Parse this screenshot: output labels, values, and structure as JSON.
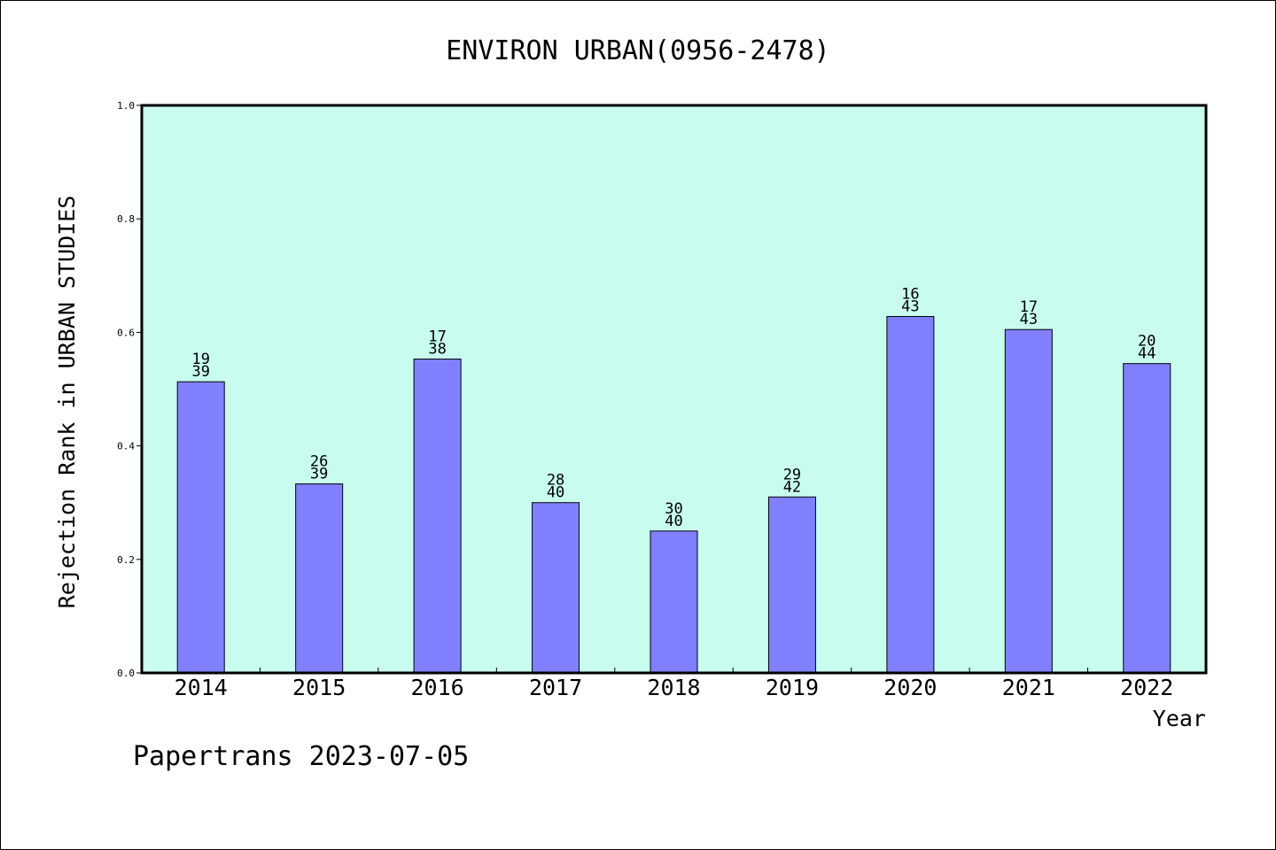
{
  "chart_data": {
    "type": "bar",
    "title": "ENVIRON URBAN(0956-2478)",
    "xlabel": "Year",
    "ylabel": "Rejection Rank in URBAN STUDIES",
    "footer": "Papertrans 2023-07-05",
    "categories": [
      "2014",
      "2015",
      "2016",
      "2017",
      "2018",
      "2019",
      "2020",
      "2021",
      "2022"
    ],
    "values": [
      0.513,
      0.333,
      0.553,
      0.3,
      0.25,
      0.31,
      0.628,
      0.605,
      0.545
    ],
    "label_top": [
      "19",
      "26",
      "17",
      "28",
      "30",
      "29",
      "16",
      "17",
      "20"
    ],
    "label_bottom": [
      "39",
      "39",
      "38",
      "40",
      "40",
      "42",
      "43",
      "43",
      "44"
    ],
    "yticks": [
      "0.0",
      "0.2",
      "0.4",
      "0.6",
      "0.8",
      "1.0"
    ],
    "ylim": [
      0,
      1.0
    ],
    "grid": false,
    "colors": {
      "plot_bg": "#c8fcef",
      "bar_fill": "#8080ff",
      "bar_stroke": "#000000"
    }
  }
}
